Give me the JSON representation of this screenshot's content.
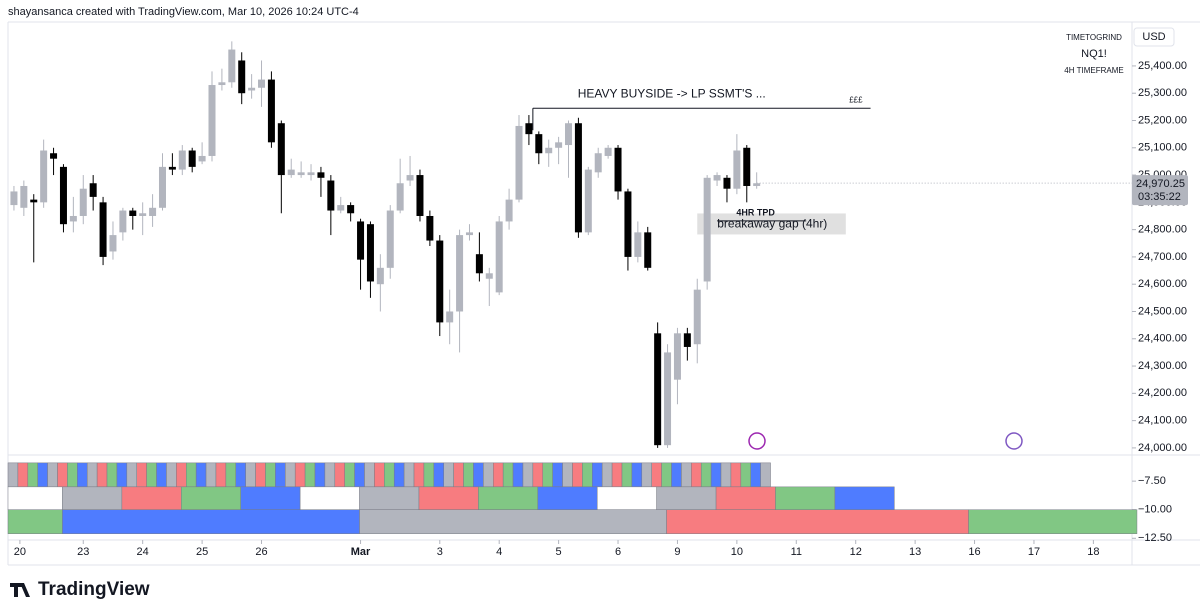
{
  "chart_data": {
    "type": "candlestick",
    "header": "shayansanca created with TradingView.com, Mar 10, 2026 10:24 UTC-4",
    "legend_lines": [
      "TIMETOGRIND",
      "NQ1!",
      "4H TIMEFRAME"
    ],
    "currency": "USD",
    "logo": "TradingView",
    "up_color": "#b2b5be",
    "down_color": "#000000",
    "open": [
      24890,
      24880,
      24910,
      24900,
      25080,
      25030,
      24830,
      24850,
      24970,
      24900,
      24720,
      24790,
      24870,
      24850,
      24850,
      24880,
      25030,
      25020,
      25090,
      25050,
      25070,
      25330,
      25340,
      25420,
      25310,
      25320,
      25350,
      25190,
      25000,
      25000,
      25000,
      25010,
      24980,
      24870,
      24890,
      24830,
      24820,
      24600,
      24660,
      24870,
      24980,
      25000,
      24850,
      24760,
      24460,
      24500,
      24780,
      24710,
      24620,
      24570,
      24830,
      24910,
      25190,
      25150,
      25080,
      25100,
      25110,
      25190,
      24790,
      25010,
      25070,
      25100,
      24940,
      24700,
      24790,
      24420,
      24010,
      24250,
      24420,
      24380,
      24610,
      24980,
      24990,
      24950,
      25100,
      24960
    ],
    "high": [
      24960,
      24980,
      24930,
      25130,
      25100,
      25040,
      24920,
      25000,
      25000,
      24920,
      24830,
      24880,
      24880,
      24900,
      24930,
      25080,
      25080,
      25110,
      25100,
      25120,
      25380,
      25390,
      25490,
      25450,
      25370,
      25420,
      25380,
      25200,
      25060,
      25050,
      25040,
      25030,
      25000,
      24920,
      24900,
      24840,
      24830,
      24710,
      24890,
      25060,
      25070,
      25020,
      24870,
      24780,
      24580,
      24800,
      24820,
      24790,
      24660,
      24850,
      24950,
      25220,
      25220,
      25160,
      25130,
      25140,
      25200,
      25210,
      25030,
      25100,
      25110,
      25110,
      24950,
      24830,
      24810,
      24460,
      24380,
      24440,
      24440,
      24620,
      25000,
      25010,
      25000,
      25150,
      25110,
      25010
    ],
    "low": [
      24870,
      24850,
      24680,
      24880,
      25000,
      24790,
      24790,
      24820,
      24870,
      24670,
      24690,
      24760,
      24800,
      24780,
      24810,
      24870,
      25000,
      25000,
      25010,
      25040,
      25050,
      25310,
      25320,
      25260,
      25280,
      25250,
      25100,
      24860,
      24990,
      24990,
      24980,
      24920,
      24780,
      24860,
      24830,
      24580,
      24550,
      24500,
      24620,
      24860,
      24960,
      24830,
      24740,
      24410,
      24380,
      24350,
      24760,
      24610,
      24520,
      24560,
      24800,
      24900,
      25110,
      25040,
      25030,
      25040,
      24990,
      24770,
      24780,
      24990,
      25060,
      24910,
      24650,
      24680,
      24650,
      24000,
      24000,
      24160,
      24320,
      24310,
      24580,
      24960,
      24900,
      24930,
      24900,
      24950
    ],
    "close": [
      24940,
      24960,
      24900,
      25090,
      25060,
      24820,
      24850,
      24950,
      24920,
      24700,
      24780,
      24870,
      24850,
      24860,
      24880,
      25030,
      25020,
      25090,
      25030,
      25070,
      25330,
      25340,
      25460,
      25300,
      25320,
      25350,
      25120,
      25000,
      25020,
      25010,
      25010,
      24990,
      24870,
      24890,
      24860,
      24690,
      24610,
      24660,
      24870,
      24970,
      25000,
      24850,
      24760,
      24460,
      24500,
      24780,
      24790,
      24640,
      24640,
      24830,
      24910,
      25180,
      25150,
      25080,
      25100,
      25120,
      25190,
      24790,
      25020,
      25080,
      25100,
      24940,
      24700,
      24790,
      24660,
      24010,
      24350,
      24420,
      24370,
      24580,
      24990,
      25000,
      24950,
      25090,
      24960,
      24970
    ],
    "xlim": [
      -0.6,
      112.9
    ],
    "xticks": [
      {
        "value": 0.6,
        "label": "20"
      },
      {
        "value": 7,
        "label": "23"
      },
      {
        "value": 13,
        "label": "24"
      },
      {
        "value": 19,
        "label": "25"
      },
      {
        "value": 25,
        "label": "26"
      },
      {
        "value": 35,
        "label": "Mar"
      },
      {
        "value": 43,
        "label": "3"
      },
      {
        "value": 49,
        "label": "4"
      },
      {
        "value": 55,
        "label": "5"
      },
      {
        "value": 61,
        "label": "6"
      },
      {
        "value": 67,
        "label": "9"
      },
      {
        "value": 73,
        "label": "10"
      },
      {
        "value": 79,
        "label": "11"
      },
      {
        "value": 85,
        "label": "12"
      },
      {
        "value": 91,
        "label": "13"
      },
      {
        "value": 97,
        "label": "16"
      },
      {
        "value": 103,
        "label": "17"
      },
      {
        "value": 109,
        "label": "18"
      }
    ],
    "ylim": [
      23974,
      25561
    ],
    "yticks": [
      {
        "value": 24000,
        "label": "24,000.00"
      },
      {
        "value": 24100,
        "label": "24,100.00"
      },
      {
        "value": 24200,
        "label": "24,200.00"
      },
      {
        "value": 24300,
        "label": "24,300.00"
      },
      {
        "value": 24400,
        "label": "24,400.00"
      },
      {
        "value": 24500,
        "label": "24,500.00"
      },
      {
        "value": 24600,
        "label": "24,600.00"
      },
      {
        "value": 24700,
        "label": "24,700.00"
      },
      {
        "value": 24800,
        "label": "24,800.00"
      },
      {
        "value": 24900,
        "label": "24,900.00"
      },
      {
        "value": 25000,
        "label": "25,000.00"
      },
      {
        "value": 25100,
        "label": "25,100.00"
      },
      {
        "value": 25200,
        "label": "25,200.00"
      },
      {
        "value": 25300,
        "label": "25,300.00"
      },
      {
        "value": 25400,
        "label": "25,400.00"
      }
    ],
    "last_price": {
      "value": 24970.25,
      "label": "24,970.25"
    },
    "countdown": "03:35:22",
    "annotations": [
      {
        "text": "HEAVY BUYSIDE -> LP SSMT'S ...",
        "tag": "£££",
        "level": 25245,
        "from": 52.4,
        "to": 86.5
      },
      {
        "text": "4HR TPD",
        "level": 24832,
        "from": 71,
        "to": 80
      },
      {
        "text": "breakaway gap (4hr)",
        "level": 24830,
        "from": 69,
        "to": 84
      }
    ],
    "lower_ylim": [
      -5.3,
      -12.65
    ],
    "lower_yticks": [
      {
        "value": -7.5,
        "label": "−7.50"
      },
      {
        "value": -10,
        "label": "−10.00"
      },
      {
        "value": -12.5,
        "label": "−12.50"
      }
    ],
    "palette": {
      "W": "#ffffff",
      "S": "#b2b5be",
      "R": "#f77c80",
      "G": "#81c784",
      "B": "#4f7cff"
    },
    "rows": [
      {
        "top": -5.9,
        "bottom": -8.0,
        "cells": "SRGBSRGBSRGBSRGBSRGBSRGBSRGBSRGBSRGBSRGBSRGBSRGBSRGBSRGBSRGBSRGBSRGBSRGBSRGBS"
      },
      {
        "top": -8.0,
        "bottom": -10.0,
        "blocks": [
          [
            "W",
            5.5
          ],
          [
            "S",
            6
          ],
          [
            "R",
            6
          ],
          [
            "G",
            6
          ],
          [
            "B",
            6
          ],
          [
            "W",
            6
          ],
          [
            "S",
            6
          ],
          [
            "R",
            6
          ],
          [
            "G",
            6
          ],
          [
            "B",
            6
          ],
          [
            "W",
            6
          ],
          [
            "S",
            6
          ],
          [
            "R",
            6
          ],
          [
            "G",
            6
          ],
          [
            "B",
            6
          ]
        ]
      },
      {
        "top": -10.0,
        "bottom": -12.1,
        "blocks": [
          [
            "G",
            5.5
          ],
          [
            "B",
            30
          ],
          [
            "S",
            31
          ],
          [
            "R",
            30.5
          ],
          [
            "G",
            17
          ]
        ]
      }
    ]
  }
}
